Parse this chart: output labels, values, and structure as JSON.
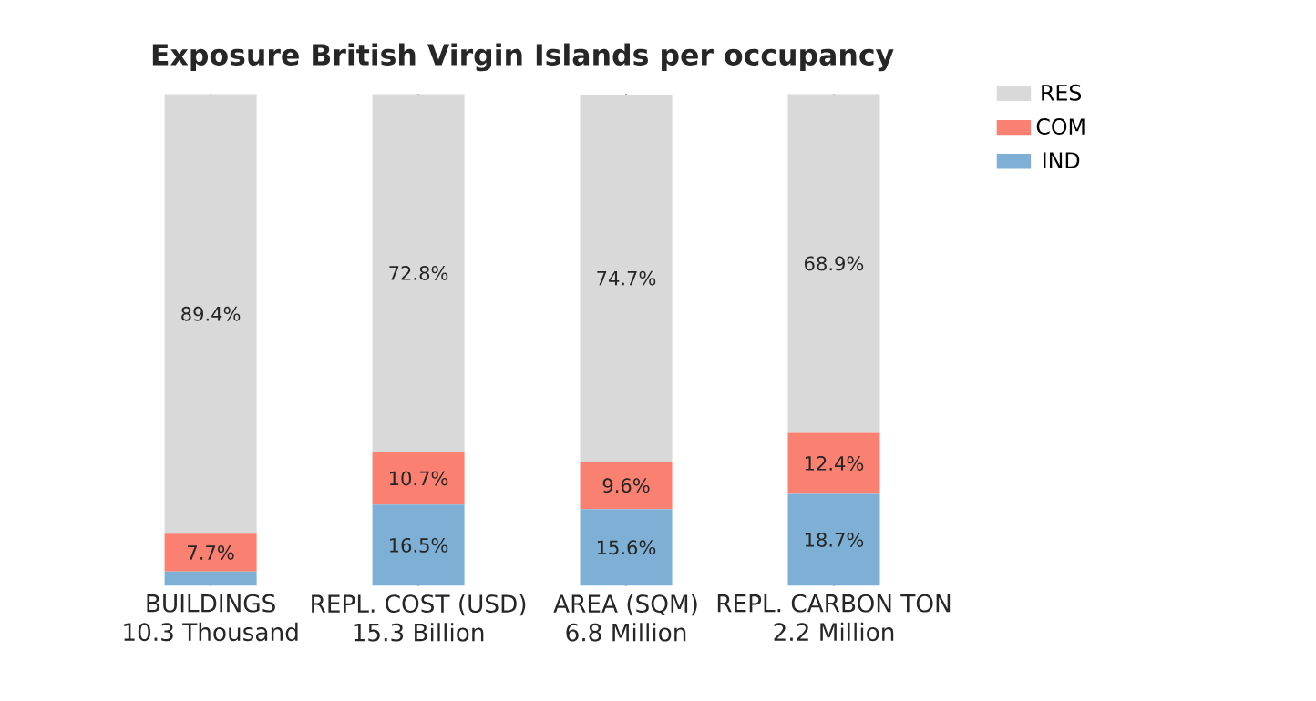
{
  "chart_data": {
    "type": "bar",
    "stacked": true,
    "title": "Exposure British Virgin Islands per occupancy",
    "categories": [
      "BUILDINGS\n10.3 Thousand",
      "REPL. COST (USD)\n15.3 Billion",
      "AREA (SQM)\n6.8 Million",
      "REPL. CARBON TON\n2.2 Million"
    ],
    "series": [
      {
        "name": "IND",
        "color": "#7eb0d5",
        "values": [
          2.9,
          16.5,
          15.6,
          18.7
        ],
        "value_labels": [
          null,
          "16.5%",
          "15.6%",
          "18.7%"
        ]
      },
      {
        "name": "COM",
        "color": "#fa8072",
        "values": [
          7.7,
          10.7,
          9.6,
          12.4
        ],
        "value_labels": [
          "7.7%",
          "10.7%",
          "9.6%",
          "12.4%"
        ]
      },
      {
        "name": "RES",
        "color": "#d9d9d9",
        "values": [
          89.4,
          72.8,
          74.7,
          68.9
        ],
        "value_labels": [
          "89.4%",
          "72.8%",
          "74.7%",
          "68.9%"
        ]
      }
    ],
    "ylim": [
      0,
      100
    ],
    "tick_labels": "x",
    "grid": false,
    "legend": "top right"
  }
}
